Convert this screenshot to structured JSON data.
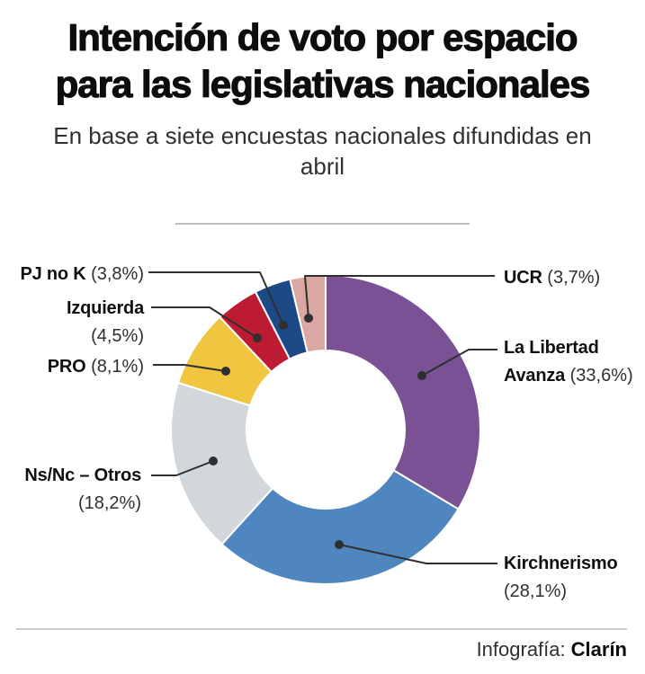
{
  "title": {
    "lines": [
      "Intención de voto por espacio",
      "para las legislativas nacionales"
    ]
  },
  "subtitle": {
    "lines": [
      "En base a siete encuestas nacionales difundidas en",
      "abril"
    ]
  },
  "footer": {
    "credit_label": "Infografía:",
    "credit_name": "Clarín"
  },
  "colors": {
    "leader_line": "#2f2f2f",
    "slice_border": "#ffffff",
    "title_text": "#0d0d0d"
  },
  "chart_data": {
    "type": "pie",
    "variant": "donut",
    "unit": "%",
    "direction": "clockwise",
    "start_angle_deg": 0,
    "total": 100.0,
    "segments": [
      {
        "label": "La Libertad Avanza",
        "value": 33.6,
        "value_display": "(33,6%)",
        "color": "#7a5195"
      },
      {
        "label": "Kirchnerismo",
        "value": 28.1,
        "value_display": "(28,1%)",
        "color": "#4f86c0"
      },
      {
        "label": "Ns/Nc – Otros",
        "value": 18.2,
        "value_display": "(18,2%)",
        "color": "#d2d7db"
      },
      {
        "label": "PRO",
        "value": 8.1,
        "value_display": "(8,1%)",
        "color": "#f0c53f"
      },
      {
        "label": "Izquierda",
        "value": 4.5,
        "value_display": "(4,5%)",
        "color": "#bd1b32"
      },
      {
        "label": "PJ no K",
        "value": 3.8,
        "value_display": "(3,8%)",
        "color": "#1d4a86"
      },
      {
        "label": "UCR",
        "value": 3.7,
        "value_display": "(3,7%)",
        "color": "#dba7a3"
      }
    ]
  }
}
